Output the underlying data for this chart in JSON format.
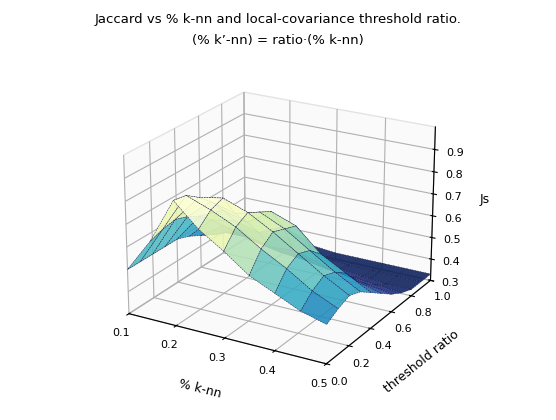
{
  "title_line1": "Jaccard vs % k-nn and local-covariance threshold ratio.",
  "title_line2": "(% k’-nn) = ratio·(% k-nn)",
  "xlabel": "% k-nn",
  "ylabel": "threshold ratio",
  "zlabel": "Js",
  "knn_values": [
    0.1,
    0.15,
    0.2,
    0.25,
    0.3,
    0.35,
    0.4,
    0.45,
    0.5
  ],
  "threshold_values": [
    0.0,
    0.1,
    0.2,
    0.3,
    0.4,
    0.5,
    0.6,
    0.7,
    0.8,
    0.9,
    1.0
  ],
  "Z": [
    [
      0.5,
      0.5,
      0.5,
      0.5,
      0.5,
      0.48,
      0.45,
      0.42,
      0.4,
      0.38,
      0.35
    ],
    [
      0.65,
      0.67,
      0.68,
      0.66,
      0.63,
      0.58,
      0.52,
      0.46,
      0.4,
      0.37,
      0.35
    ],
    [
      0.85,
      0.84,
      0.8,
      0.75,
      0.68,
      0.6,
      0.5,
      0.43,
      0.38,
      0.36,
      0.35
    ],
    [
      0.75,
      0.8,
      0.82,
      0.72,
      0.65,
      0.57,
      0.47,
      0.41,
      0.37,
      0.35,
      0.34
    ],
    [
      0.68,
      0.75,
      0.78,
      0.75,
      0.72,
      0.62,
      0.48,
      0.4,
      0.36,
      0.34,
      0.33
    ],
    [
      0.6,
      0.68,
      0.72,
      0.7,
      0.68,
      0.58,
      0.45,
      0.38,
      0.35,
      0.33,
      0.33
    ],
    [
      0.55,
      0.62,
      0.65,
      0.63,
      0.58,
      0.5,
      0.42,
      0.37,
      0.34,
      0.33,
      0.33
    ],
    [
      0.5,
      0.55,
      0.58,
      0.56,
      0.52,
      0.45,
      0.4,
      0.36,
      0.33,
      0.33,
      0.33
    ],
    [
      0.47,
      0.5,
      0.52,
      0.5,
      0.46,
      0.42,
      0.38,
      0.35,
      0.33,
      0.33,
      0.33
    ]
  ],
  "zlim": [
    0.3,
    1.0
  ],
  "knn_ticks": [
    0.1,
    0.2,
    0.3,
    0.4,
    0.5
  ],
  "threshold_ticks": [
    0.0,
    0.2,
    0.4,
    0.6,
    0.8,
    1.0
  ],
  "zticks": [
    0.3,
    0.4,
    0.5,
    0.6,
    0.7,
    0.8,
    0.9
  ],
  "elev": 22,
  "azim": -60,
  "colormap": "YlGnBu_r",
  "background_color": "#ffffff",
  "title_fontsize": 9.5,
  "label_fontsize": 9,
  "tick_fontsize": 8
}
